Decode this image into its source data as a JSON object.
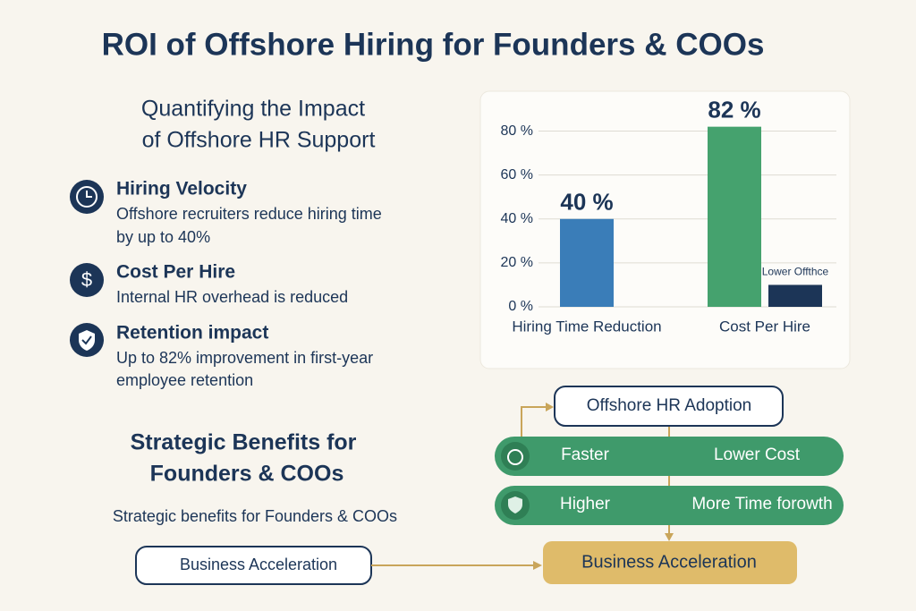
{
  "title": "ROI of Offshore Hiring for Founders & COOs",
  "impact": {
    "heading": [
      "Quantifying the Impact",
      "of Offshore HR Support"
    ],
    "items": [
      {
        "title": "Hiring Velocity",
        "text": [
          "Offshore recruiters  reduce hiring time",
          "by up to 40%"
        ]
      },
      {
        "title": "Cost Per Hire",
        "text": [
          "Internal HR overhead is reduced"
        ]
      },
      {
        "title": "Retention impact",
        "text": [
          "Up to 82% improvement in first-year",
          "employee retention"
        ]
      }
    ]
  },
  "benefits": {
    "heading": [
      "Strategic Benefits for",
      "Founders & COOs"
    ],
    "subtext": "Strategic benefits for Founders & COOs",
    "button": "Business Acceleration"
  },
  "chart_data": {
    "type": "bar",
    "categories": [
      "Hiring Time Reduction",
      "Cost Per Hire"
    ],
    "series": [
      {
        "color": "#3a7db8",
        "values": [
          40,
          null
        ],
        "value_labels": [
          "40 %",
          null
        ]
      },
      {
        "color": "#45a26e",
        "values": [
          null,
          82
        ],
        "value_labels": [
          null,
          "82 %"
        ]
      },
      {
        "name": "Lower Offthce",
        "color": "#1c3557",
        "values": [
          null,
          10
        ]
      }
    ],
    "ylim": [
      0,
      90
    ],
    "yticks": [
      {
        "value": 0,
        "label": "0 %"
      },
      {
        "value": 20,
        "label": "20 %"
      },
      {
        "value": 40,
        "label": "40 %"
      },
      {
        "value": 60,
        "label": "60 %"
      },
      {
        "value": 80,
        "label": "80 %"
      }
    ],
    "grid": true
  },
  "flow": {
    "top": "Offshore HR Adoption",
    "rows": [
      [
        "Faster",
        "Lower Cost"
      ],
      [
        "Higher",
        "More Time forowth"
      ]
    ],
    "result": "Business Acceleration"
  }
}
